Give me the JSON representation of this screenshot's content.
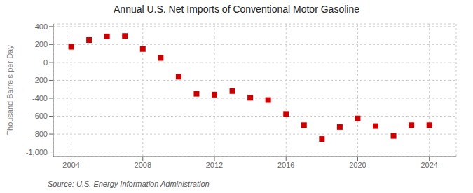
{
  "chart_data": {
    "type": "scatter",
    "title": "Annual U.S. Net Imports of Conventional Motor Gasoline",
    "ylabel": "Thousand Barrels per Day",
    "source": "Source: U.S. Energy Information Administration",
    "x": [
      2004,
      2005,
      2006,
      2007,
      2008,
      2009,
      2010,
      2011,
      2012,
      2013,
      2014,
      2015,
      2016,
      2017,
      2018,
      2019,
      2020,
      2021,
      2022,
      2023,
      2024
    ],
    "values": [
      175,
      250,
      290,
      295,
      150,
      50,
      -160,
      -350,
      -360,
      -320,
      -395,
      -420,
      -575,
      -700,
      -855,
      -720,
      -625,
      -710,
      -820,
      -700,
      -700
    ],
    "color": "#cc0000",
    "marker": "square",
    "xlim": [
      2003,
      2025.5
    ],
    "xticks": [
      2004,
      2008,
      2012,
      2016,
      2020,
      2024
    ],
    "ylim": [
      -1050,
      430
    ],
    "yticks": [
      {
        "value": -1000,
        "label": "-1,000"
      },
      -800,
      -600,
      -400,
      -200,
      0,
      200,
      400
    ],
    "grid": true
  }
}
